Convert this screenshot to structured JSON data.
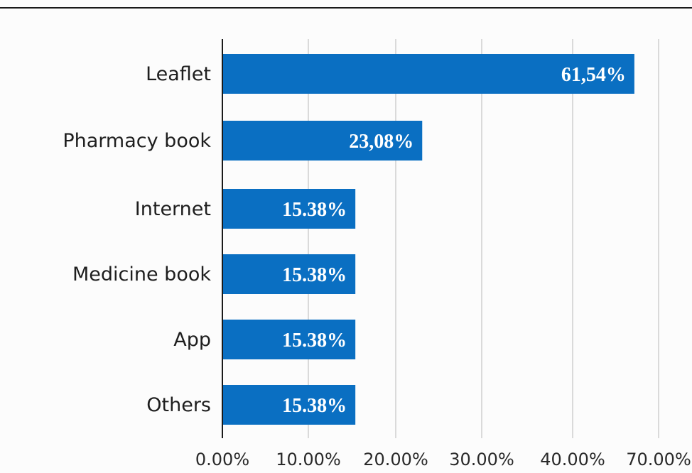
{
  "colors": {
    "bar": "#0a6fc2",
    "grid": "#cfcfcf",
    "axis": "#1a1a1a"
  },
  "chart_data": {
    "type": "bar",
    "orientation": "horizontal",
    "title": "",
    "xlabel": "",
    "ylabel": "",
    "categories": [
      "Leaflet",
      "Pharmacy book",
      "Internet",
      "Medicine book",
      "App",
      "Others"
    ],
    "values": [
      61.54,
      23.08,
      15.38,
      15.38,
      15.38,
      15.38
    ],
    "value_labels": [
      "61,54%",
      "23,08%",
      "15.38%",
      "15.38%",
      "15.38%",
      "15.38%"
    ],
    "x_ticks": [
      "0.00%",
      "10.00%",
      "20.00%",
      "30.00%",
      "40.00%",
      "70.00%"
    ],
    "grid": true,
    "legend": "none"
  }
}
